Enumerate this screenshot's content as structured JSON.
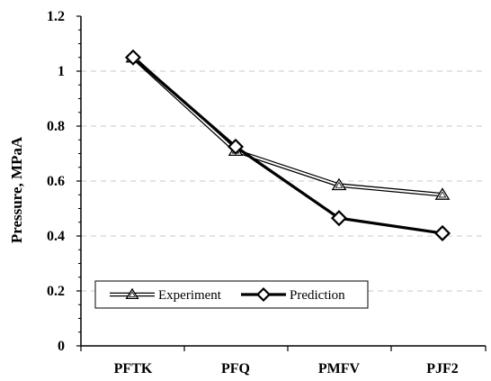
{
  "chart_data": {
    "type": "line",
    "title": "",
    "xlabel": "",
    "ylabel": "Pressure, MPaA",
    "categories": [
      "PFTK",
      "PFQ",
      "PMFV",
      "PJF2"
    ],
    "ylim": [
      0,
      1.2
    ],
    "yticks": [
      0,
      0.2,
      0.4,
      0.6,
      0.8,
      1,
      1.2
    ],
    "ytick_labels": [
      "0",
      "0.2",
      "0.4",
      "0.6",
      "0.8",
      "1",
      "1.2"
    ],
    "grid": "horizontal dashed",
    "legend_position": "bottom-left",
    "series": [
      {
        "name": "Experiment",
        "values": [
          1.05,
          0.71,
          0.585,
          0.55
        ],
        "marker": "triangle",
        "color": "#000000",
        "style": "double-line"
      },
      {
        "name": "Prediction",
        "values": [
          1.05,
          0.725,
          0.465,
          0.41
        ],
        "marker": "diamond",
        "color": "#000000",
        "style": "thick"
      }
    ]
  }
}
